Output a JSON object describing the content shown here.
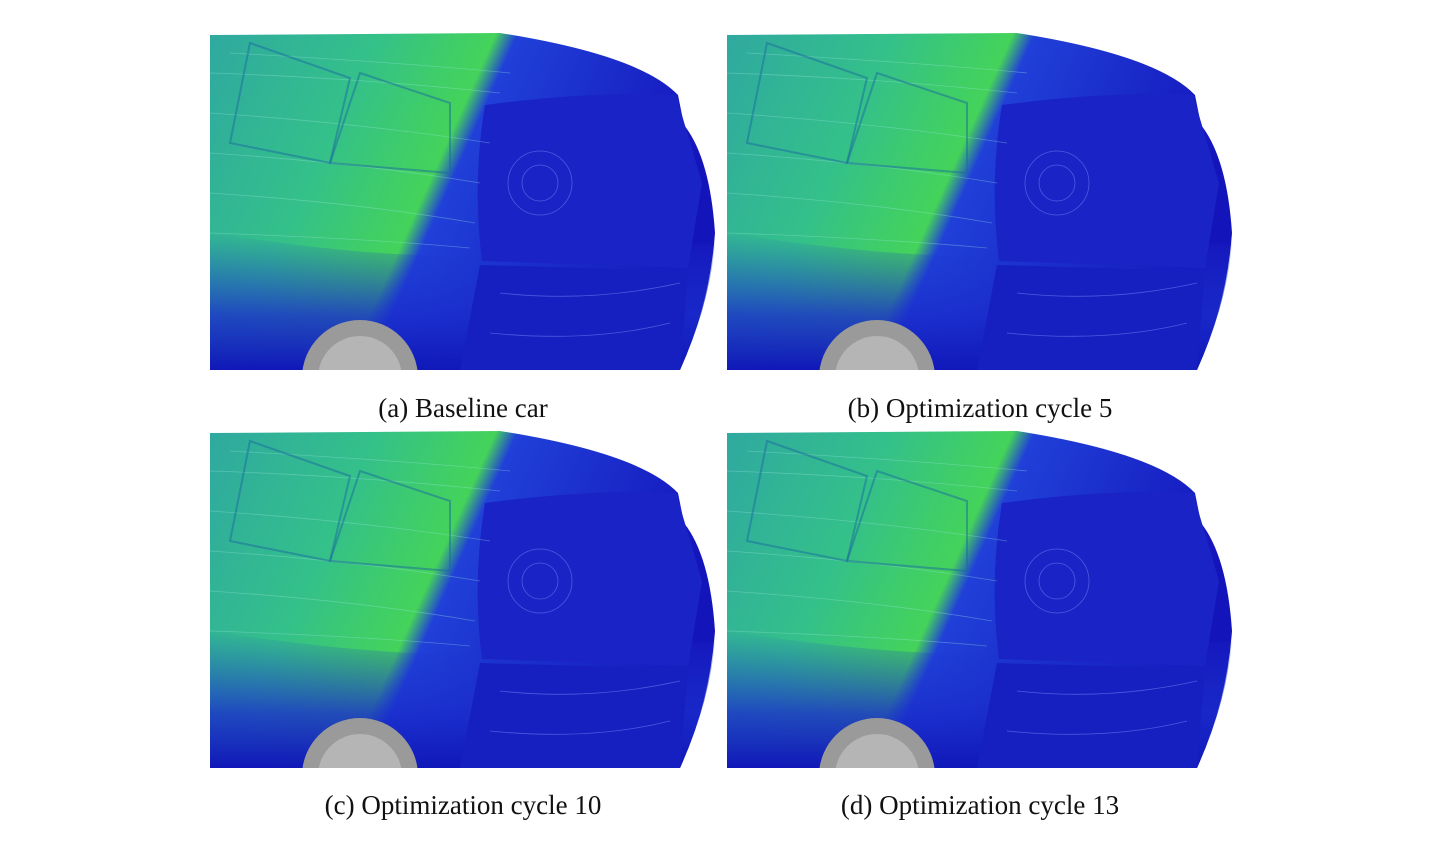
{
  "figure": {
    "panels": [
      {
        "caption": "(a) Baseline car"
      },
      {
        "caption": "(b) Optimization cycle 5"
      },
      {
        "caption": "(c) Optimization cycle 10"
      },
      {
        "caption": "(d) Optimization cycle 13"
      }
    ]
  }
}
